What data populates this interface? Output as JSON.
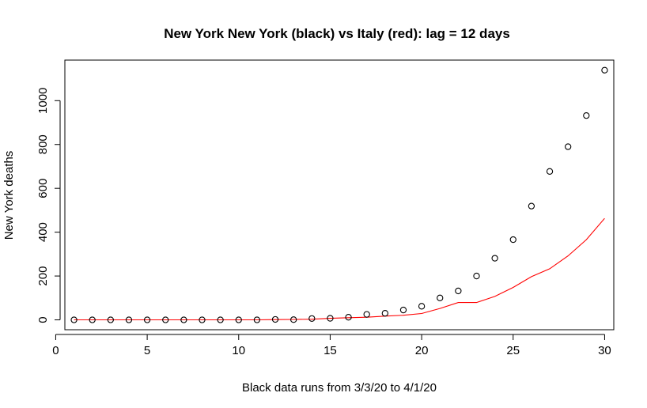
{
  "chart_data": {
    "type": "scatter",
    "title": "New York New York (black) vs Italy (red): lag = 12 days",
    "xlabel": "Black data runs from  3/3/20  to  4/1/20",
    "ylabel": "New York deaths",
    "xlim": [
      0.5,
      30.5
    ],
    "ylim": [
      -45,
      1185
    ],
    "x_ticks": [
      0,
      5,
      10,
      15,
      20,
      25,
      30
    ],
    "y_ticks": [
      0,
      200,
      400,
      600,
      800,
      1000
    ],
    "grid": false,
    "legend": "none",
    "series": [
      {
        "type": "points",
        "color": "#000000",
        "x": [
          1,
          2,
          3,
          4,
          5,
          6,
          7,
          8,
          9,
          10,
          11,
          12,
          13,
          14,
          15,
          16,
          17,
          18,
          19,
          20,
          21,
          22,
          23,
          24,
          25,
          26,
          27,
          28,
          29,
          30
        ],
        "y": [
          0,
          0,
          0,
          0,
          0,
          0,
          0,
          0,
          0,
          0,
          0,
          2,
          1,
          6,
          7,
          12,
          25,
          30,
          45,
          62,
          100,
          132,
          200,
          281,
          366,
          519,
          677,
          790,
          932,
          1139
        ]
      },
      {
        "type": "line",
        "color": "#ff0000",
        "x": [
          1,
          2,
          3,
          4,
          5,
          6,
          7,
          8,
          9,
          10,
          11,
          12,
          13,
          14,
          15,
          16,
          17,
          18,
          19,
          20,
          21,
          22,
          23,
          24,
          25,
          26,
          27,
          28,
          29,
          30
        ],
        "y": [
          0,
          0,
          0,
          0,
          0,
          0,
          0,
          0,
          0,
          0,
          0,
          1,
          2,
          3,
          7,
          10,
          12,
          17,
          21,
          29,
          52,
          79,
          79,
          107,
          148,
          197,
          233,
          292,
          366,
          463
        ]
      }
    ]
  }
}
